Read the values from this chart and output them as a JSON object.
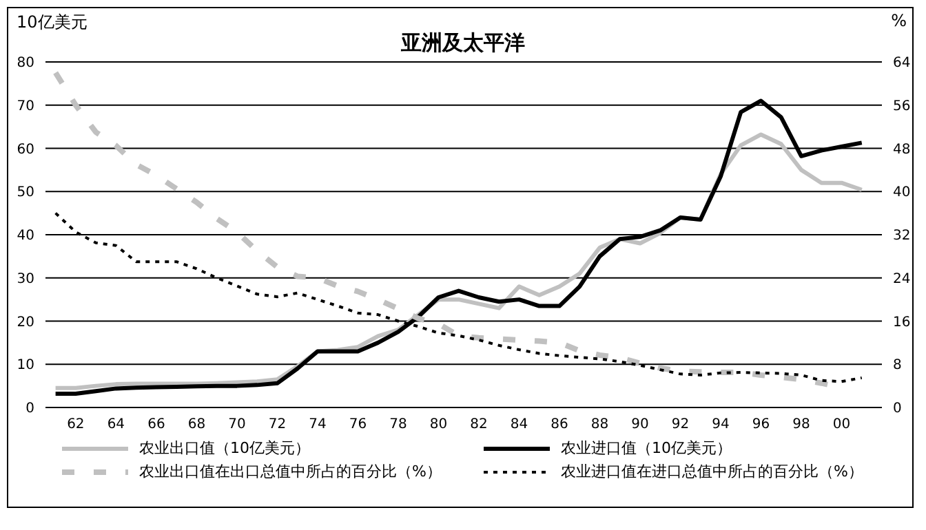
{
  "chart_data": {
    "type": "line",
    "title": "亚洲及太平洋",
    "ylabel": "10亿美元",
    "y2label": "%",
    "x": [
      1961,
      1962,
      1963,
      1964,
      1965,
      1966,
      1967,
      1968,
      1969,
      1970,
      1971,
      1972,
      1973,
      1974,
      1975,
      1976,
      1977,
      1978,
      1979,
      1980,
      1981,
      1982,
      1983,
      1984,
      1985,
      1986,
      1987,
      1988,
      1989,
      1990,
      1991,
      1992,
      1993,
      1994,
      1995,
      1996,
      1997,
      1998,
      1999,
      2000,
      2001
    ],
    "xlim": [
      1960.5,
      2002
    ],
    "xticks": [
      {
        "value": 1962,
        "label": "62"
      },
      {
        "value": 1964,
        "label": "64"
      },
      {
        "value": 1966,
        "label": "66"
      },
      {
        "value": 1968,
        "label": "68"
      },
      {
        "value": 1970,
        "label": "70"
      },
      {
        "value": 1972,
        "label": "72"
      },
      {
        "value": 1974,
        "label": "74"
      },
      {
        "value": 1976,
        "label": "76"
      },
      {
        "value": 1978,
        "label": "78"
      },
      {
        "value": 1980,
        "label": "80"
      },
      {
        "value": 1982,
        "label": "82"
      },
      {
        "value": 1984,
        "label": "84"
      },
      {
        "value": 1986,
        "label": "86"
      },
      {
        "value": 1988,
        "label": "88"
      },
      {
        "value": 1990,
        "label": "90"
      },
      {
        "value": 1992,
        "label": "92"
      },
      {
        "value": 1994,
        "label": "94"
      },
      {
        "value": 1996,
        "label": "96"
      },
      {
        "value": 1998,
        "label": "98"
      },
      {
        "value": 2000,
        "label": "00"
      }
    ],
    "ylim": [
      0,
      80
    ],
    "yticks": [
      0,
      10,
      20,
      30,
      40,
      50,
      60,
      70,
      80
    ],
    "y2lim": [
      0,
      64
    ],
    "y2ticks": [
      0,
      8,
      16,
      24,
      32,
      40,
      48,
      56,
      64
    ],
    "grid": "y",
    "legend": "bottom",
    "marker": "none",
    "series": [
      {
        "name": "农业出口值（10亿美元）",
        "color": "#c0c0c0",
        "line_style": "solid",
        "values": [
          4.5,
          4.5,
          5,
          5.4,
          5.5,
          5.5,
          5.5,
          5.5,
          5.6,
          5.8,
          6,
          6.5,
          9.5,
          13,
          13.3,
          14,
          16.5,
          18,
          21.5,
          25,
          25,
          24,
          23,
          28,
          26,
          28,
          31,
          37,
          39,
          38,
          40.4,
          44,
          43.5,
          54,
          60.7,
          63.2,
          61,
          55,
          52,
          52,
          50.4
        ]
      },
      {
        "name": "农业进口值（10亿美元）",
        "color": "#000000",
        "line_style": "solid",
        "values": [
          3.2,
          3.2,
          3.8,
          4.4,
          4.6,
          4.7,
          4.8,
          4.9,
          5,
          5,
          5.2,
          5.6,
          9,
          13,
          13,
          13,
          15,
          17.5,
          21,
          25.5,
          27,
          25.5,
          24.5,
          25,
          23.5,
          23.5,
          28,
          35,
          39,
          39.5,
          41,
          44,
          43.5,
          53.5,
          68.4,
          71,
          67.2,
          58.2,
          59.5,
          60.4,
          61.3
        ]
      },
      {
        "name": "农业出口值在出口总值中所占的百分比（%）",
        "axis": "y2",
        "color": "#c0c0c0",
        "line_style": "dashed",
        "values": [
          62,
          56,
          51,
          48.5,
          45,
          43,
          40.5,
          38,
          35,
          32.5,
          29,
          26,
          24.3,
          24,
          22.5,
          21.5,
          20,
          18.3,
          16.5,
          15.5,
          13.3,
          12.9,
          12.7,
          12.5,
          12.3,
          12,
          10.5,
          9.7,
          9.2,
          8.2,
          7.3,
          6.7,
          6.6,
          6.5,
          6.5,
          6,
          5.6,
          5.2,
          4.5,
          3.7,
          null
        ]
      },
      {
        "name": "农业进口值在进口总值中所占的百分比（%）",
        "axis": "y2",
        "color": "#000000",
        "line_style": "dotted",
        "values": [
          36,
          32.5,
          30.5,
          30,
          27,
          27,
          27,
          25.7,
          24,
          22.5,
          21,
          20.5,
          21.2,
          20,
          18.8,
          17.5,
          17.2,
          16,
          15,
          13.8,
          13.3,
          12.5,
          11.5,
          10.7,
          10,
          9.6,
          9.3,
          9,
          8.5,
          7.8,
          7,
          6.2,
          6,
          6.4,
          6.5,
          6.4,
          6.3,
          6,
          5,
          4.8,
          5.5
        ]
      }
    ]
  }
}
